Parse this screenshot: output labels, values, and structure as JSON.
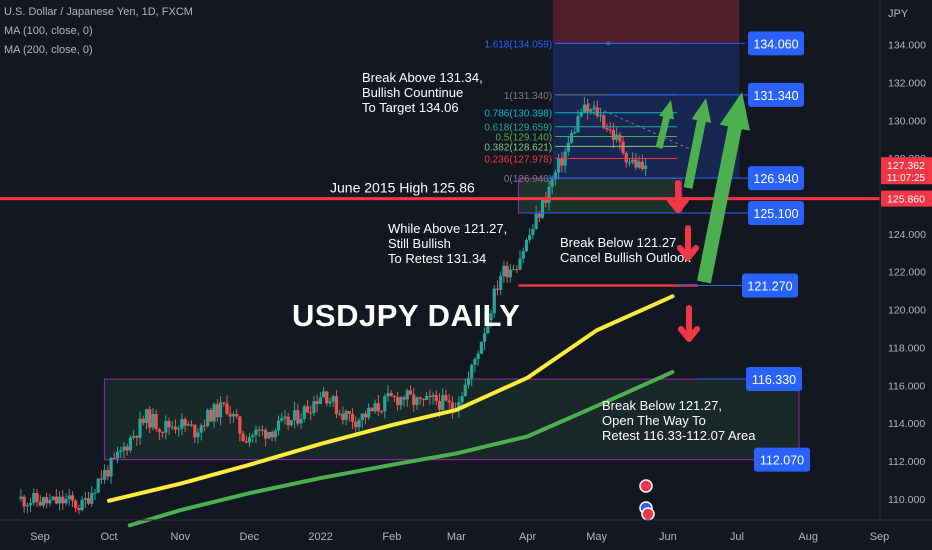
{
  "header": {
    "symbol_line": "U.S. Dollar / Japanese Yen, 1D, FXCM",
    "ma100_line": "MA (100, close, 0)",
    "ma200_line": "MA (200, close, 0)"
  },
  "chart_data": {
    "type": "candlestick",
    "title": "USDJPY DAILY",
    "yaxis_unit": "JPY",
    "ylim": [
      108.6,
      136.8
    ],
    "y_ticks": [
      110,
      112,
      114,
      116,
      118,
      120,
      122,
      124,
      126,
      128,
      130,
      132,
      134
    ],
    "x_ticks": [
      "Sep",
      "Oct",
      "Nov",
      "Dec",
      "2022",
      "Feb",
      "Mar",
      "Apr",
      "May",
      "Jun",
      "Jul",
      "Aug",
      "Sep"
    ],
    "price_path": [
      [
        "2021-08-23",
        110.0
      ],
      [
        "2021-08-30",
        109.9
      ],
      [
        "2021-09-06",
        109.8
      ],
      [
        "2021-09-13",
        109.9
      ],
      [
        "2021-09-20",
        109.6
      ],
      [
        "2021-09-27",
        111.0
      ],
      [
        "2021-10-04",
        111.9
      ],
      [
        "2021-10-11",
        113.2
      ],
      [
        "2021-10-18",
        114.3
      ],
      [
        "2021-10-25",
        113.8
      ],
      [
        "2021-11-01",
        114.0
      ],
      [
        "2021-11-08",
        113.6
      ],
      [
        "2021-11-15",
        114.5
      ],
      [
        "2021-11-22",
        114.9
      ],
      [
        "2021-11-29",
        113.3
      ],
      [
        "2021-12-06",
        113.5
      ],
      [
        "2021-12-13",
        113.7
      ],
      [
        "2021-12-20",
        114.1
      ],
      [
        "2021-12-27",
        114.8
      ],
      [
        "2022-01-03",
        115.7
      ],
      [
        "2022-01-10",
        114.6
      ],
      [
        "2022-01-17",
        114.2
      ],
      [
        "2022-01-24",
        114.6
      ],
      [
        "2022-01-31",
        115.2
      ],
      [
        "2022-02-07",
        115.4
      ],
      [
        "2022-02-14",
        115.0
      ],
      [
        "2022-02-21",
        115.2
      ],
      [
        "2022-02-28",
        114.8
      ],
      [
        "2022-03-07",
        116.3
      ],
      [
        "2022-03-14",
        119.0
      ],
      [
        "2022-03-21",
        121.9
      ],
      [
        "2022-03-28",
        122.5
      ],
      [
        "2022-04-04",
        124.3
      ],
      [
        "2022-04-11",
        126.4
      ],
      [
        "2022-04-18",
        128.3
      ],
      [
        "2022-04-25",
        130.5
      ],
      [
        "2022-05-02",
        130.4
      ],
      [
        "2022-05-09",
        129.2
      ],
      [
        "2022-05-16",
        127.9
      ],
      [
        "2022-05-23",
        127.4
      ]
    ],
    "moving_averages": [
      {
        "name": "MA (100, close, 0)",
        "color": "#ffeb3b",
        "points": [
          [
            "2021-10-01",
            109.9
          ],
          [
            "2021-11-01",
            110.8
          ],
          [
            "2021-12-01",
            111.8
          ],
          [
            "2022-01-01",
            112.9
          ],
          [
            "2022-02-01",
            113.9
          ],
          [
            "2022-03-01",
            114.7
          ],
          [
            "2022-04-01",
            116.4
          ],
          [
            "2022-05-01",
            118.9
          ],
          [
            "2022-06-03",
            120.7
          ]
        ]
      },
      {
        "name": "MA (200, close, 0)",
        "color": "#4caf50",
        "points": [
          [
            "2021-10-10",
            108.6
          ],
          [
            "2021-11-01",
            109.4
          ],
          [
            "2021-12-01",
            110.3
          ],
          [
            "2022-01-01",
            111.1
          ],
          [
            "2022-02-01",
            111.8
          ],
          [
            "2022-03-01",
            112.4
          ],
          [
            "2022-04-01",
            113.3
          ],
          [
            "2022-05-01",
            114.9
          ],
          [
            "2022-06-03",
            116.7
          ]
        ]
      }
    ],
    "horizontal_levels": [
      {
        "label": "June 2015 High 125.86",
        "value": 125.86
      },
      {
        "value": 121.27
      }
    ],
    "fibonacci": [
      {
        "label": "1.618(134.059)",
        "value": 134.059,
        "color": "#2962ff"
      },
      {
        "label": "1(131.340)",
        "value": 131.34,
        "color": "#787b86"
      },
      {
        "label": "0.786(130.398)",
        "value": 130.398,
        "color": "#00bcd4"
      },
      {
        "label": "0.618(129.659)",
        "value": 129.659,
        "color": "#26a69a"
      },
      {
        "label": "0.5(129.140)",
        "value": 129.14,
        "color": "#4caf50"
      },
      {
        "label": "0.382(128.621)",
        "value": 128.621,
        "color": "#81c784"
      },
      {
        "label": "0.236(127.978)",
        "value": 127.978,
        "color": "#f23645"
      },
      {
        "label": "0(126.940)",
        "value": 126.94,
        "color": "#787b86"
      }
    ],
    "level_labels": [
      {
        "text": "134.060",
        "value": 134.06
      },
      {
        "text": "131.340",
        "value": 131.34
      },
      {
        "text": "126.940",
        "value": 126.94
      },
      {
        "text": "125.100",
        "value": 125.1
      },
      {
        "text": "121.270",
        "value": 121.27
      },
      {
        "text": "116.330",
        "value": 116.33
      },
      {
        "text": "112.070",
        "value": 112.07
      }
    ],
    "range_box": {
      "from": "2021-09-29",
      "to": "2022-07-28",
      "low": 112.07,
      "high": 116.33
    },
    "annotations": [
      [
        "Break Above 131.34,",
        "Bullish Countinue",
        "To Target 134.06"
      ],
      [
        "While Above 121.27,",
        "Still Bullish",
        "To Retest 131.34"
      ],
      [
        "Break Below 121.27,",
        "Cancel Bullish Outlook"
      ],
      [
        "Break Below 121.27,",
        "Open The Way To",
        "Retest 116.33-112.07 Area"
      ]
    ],
    "price_tags": [
      {
        "text": "127.362",
        "sub": "11:07:25",
        "value": 127.362,
        "color": "#f23645"
      },
      {
        "text": "125.860",
        "value": 125.86,
        "color": "#f23645"
      }
    ]
  }
}
